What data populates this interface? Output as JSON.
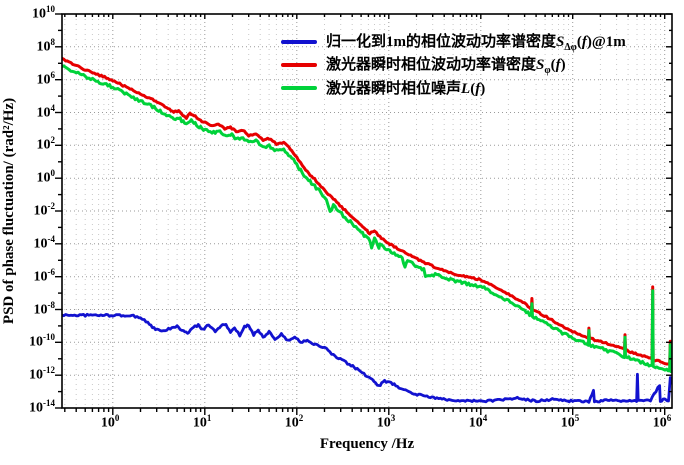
{
  "figure": {
    "background": "#ffffff",
    "axis_color": "#000000",
    "grid_major_color": "#9a9a9a",
    "grid_minor_color": "#c8c8c8"
  },
  "chart_data": {
    "type": "line",
    "title": "",
    "xlabel": "Frequency /Hz",
    "ylabel": "PSD of phase fluctuation/ (rad²/Hz)",
    "xscale": "log",
    "yscale": "log",
    "xlim": [
      0.28,
      1200000
    ],
    "ylim": [
      1e-14,
      10000000000.0
    ],
    "x_tick_exponents": [
      0,
      1,
      2,
      3,
      4,
      5,
      6
    ],
    "y_tick_exponents": [
      10,
      8,
      6,
      4,
      2,
      0,
      -2,
      -4,
      -6,
      -8,
      -10,
      -12,
      -14
    ],
    "grid": "dotted",
    "legend_position": "top-right-inside",
    "legend": [
      {
        "series": 0,
        "color": "#1212cf",
        "label_cjk": "归一化到1m的相位波动功率谱密度",
        "label_math": "*S*_{Δφ}(*f*)@1m"
      },
      {
        "series": 1,
        "color": "#e60000",
        "label_cjk": "激光器瞬时相位波动功率谱密度",
        "label_math": "*S*_{φ}(*f*)"
      },
      {
        "series": 2,
        "color": "#00d23a",
        "label_cjk": "激光器瞬时相位噪声",
        "label_math": "*L*(*f*)"
      }
    ],
    "series": [
      {
        "name": "归一化到1m的相位波动功率谱密度SΔφ(f)@1m",
        "color": "#1212cf",
        "width": 2.8,
        "noise_dec": 0.06,
        "points": [
          [
            0.28,
            4.5e-09
          ],
          [
            0.6,
            4.5e-09
          ],
          [
            1.0,
            4.4e-09
          ],
          [
            1.6,
            4.2e-09
          ],
          [
            2.0,
            3.2e-09
          ],
          [
            2.4,
            1.6e-09
          ],
          [
            2.8,
            7e-10
          ],
          [
            3.4,
            4.5e-10
          ],
          [
            4.2,
            7e-10
          ],
          [
            5.0,
            9e-10
          ],
          [
            5.8,
            5e-10
          ],
          [
            6.5,
            3.5e-10
          ],
          [
            7.5,
            8e-10
          ],
          [
            8.5,
            1.1e-09
          ],
          [
            9.5,
            6e-10
          ],
          [
            11,
            1.2e-09
          ],
          [
            13,
            5e-10
          ],
          [
            15,
            1e-09
          ],
          [
            17,
            1.3e-09
          ],
          [
            19,
            3.5e-10
          ],
          [
            21,
            8e-10
          ],
          [
            24,
            2.5e-10
          ],
          [
            27,
            9e-10
          ],
          [
            30,
            1.1e-09
          ],
          [
            34,
            3e-10
          ],
          [
            38,
            6e-10
          ],
          [
            43,
            2e-10
          ],
          [
            50,
            4.5e-10
          ],
          [
            58,
            1.5e-10
          ],
          [
            68,
            3.2e-10
          ],
          [
            80,
            1.2e-10
          ],
          [
            95,
            2.2e-10
          ],
          [
            110,
            1e-10
          ],
          [
            130,
            1.4e-10
          ],
          [
            160,
            7e-11
          ],
          [
            200,
            5e-11
          ],
          [
            250,
            1.6e-11
          ],
          [
            310,
            8e-12
          ],
          [
            390,
            4e-12
          ],
          [
            470,
            2e-12
          ],
          [
            560,
            1e-12
          ],
          [
            660,
            5e-13
          ],
          [
            780,
            2.2e-13
          ],
          [
            900,
            4.5e-13
          ],
          [
            1100,
            3e-13
          ],
          [
            1400,
            1.4e-13
          ],
          [
            1800,
            8e-14
          ],
          [
            2400,
            5.5e-14
          ],
          [
            3200,
            4e-14
          ],
          [
            4500,
            3.2e-14
          ],
          [
            6500,
            2.8e-14
          ],
          [
            10000,
            2.6e-14
          ],
          [
            16000,
            3e-14
          ],
          [
            25000,
            4e-14
          ],
          [
            40000,
            2.6e-14
          ],
          [
            60000,
            3.4e-14
          ],
          [
            100000,
            2.6e-14
          ],
          [
            150000,
            2.5e-14
          ],
          [
            168000,
            1.1e-13
          ],
          [
            172000,
            2.5e-14
          ],
          [
            250000,
            3e-14
          ],
          [
            350000,
            2.6e-14
          ],
          [
            495000,
            2.6e-14
          ],
          [
            505000,
            1.3e-12
          ],
          [
            515000,
            2.6e-14
          ],
          [
            700000,
            3e-14
          ],
          [
            880000,
            2.5e-13
          ],
          [
            895000,
            2.6e-14
          ],
          [
            1000000,
            3.5e-14
          ],
          [
            1100000,
            2.8e-14
          ],
          [
            1150000,
            7e-13
          ],
          [
            1200000,
            3e-13
          ]
        ]
      },
      {
        "name": "激光器瞬时相位波动功率谱密度Sφ(f)",
        "color": "#e60000",
        "width": 3,
        "noise_dec": 0.05,
        "points": [
          [
            0.28,
            18000000.0
          ],
          [
            0.4,
            7000000.0
          ],
          [
            0.55,
            3200000.0
          ],
          [
            0.75,
            1700000.0
          ],
          [
            1.0,
            900000.0
          ],
          [
            1.4,
            350000.0
          ],
          [
            2.0,
            130000.0
          ],
          [
            2.7,
            60000.0
          ],
          [
            3.4,
            30000.0
          ],
          [
            4.0,
            17000.0
          ],
          [
            4.6,
            11000.0
          ],
          [
            5.2,
            13000.0
          ],
          [
            5.8,
            7000.0
          ],
          [
            6.3,
            4500.0
          ],
          [
            6.9,
            9000.0
          ],
          [
            7.6,
            6500.0
          ],
          [
            8.4,
            4200.0
          ],
          [
            9.3,
            3000.0
          ],
          [
            10.5,
            2200.0
          ],
          [
            12,
            1500.0
          ],
          [
            14,
            2000.0
          ],
          [
            16.5,
            1000.0
          ],
          [
            19,
            1300.0
          ],
          [
            22,
            650.0
          ],
          [
            26,
            800.0
          ],
          [
            30,
            400.0
          ],
          [
            36,
            480.0
          ],
          [
            43,
            220.0
          ],
          [
            50,
            260.0
          ],
          [
            60,
            120.0
          ],
          [
            72,
            140.0
          ],
          [
            85,
            60
          ],
          [
            100,
            18
          ],
          [
            110,
            8
          ],
          [
            120,
            4
          ],
          [
            145,
            1.3
          ],
          [
            175,
            0.45
          ],
          [
            210,
            0.14
          ],
          [
            260,
            0.045
          ],
          [
            320,
            0.014
          ],
          [
            400,
            0.0045
          ],
          [
            480,
            0.0016
          ],
          [
            560,
            0.00075
          ],
          [
            620,
            0.00042
          ],
          [
            700,
            0.00062
          ],
          [
            800,
            0.00026
          ],
          [
            950,
            0.00013
          ],
          [
            1100,
            7.5e-05
          ],
          [
            1400,
            3.6e-05
          ],
          [
            1800,
            1.7e-05
          ],
          [
            2400,
            7.5e-06
          ],
          [
            3200,
            3.8e-06
          ],
          [
            4500,
            1.9e-06
          ],
          [
            6000,
            1.2e-06
          ],
          [
            8000,
            8.5e-07
          ],
          [
            10000,
            6.5e-07
          ],
          [
            14000,
            2.6e-07
          ],
          [
            20000,
            8.5e-08
          ],
          [
            30000,
            2.4e-08
          ],
          [
            35500,
            1.1e-08
          ],
          [
            36000,
            4.5e-08
          ],
          [
            36500,
            1e-08
          ],
          [
            45000,
            5.5e-09
          ],
          [
            65000,
            1.7e-09
          ],
          [
            100000,
            4.5e-10
          ],
          [
            148000,
            1.9e-10
          ],
          [
            150000,
            8e-10
          ],
          [
            152000,
            1.8e-10
          ],
          [
            220000,
            9.5e-11
          ],
          [
            300000,
            5.5e-11
          ],
          [
            365000,
            3.6e-11
          ],
          [
            370000,
            3e-10
          ],
          [
            375000,
            3.4e-11
          ],
          [
            500000,
            1.9e-11
          ],
          [
            600000,
            1.4e-11
          ],
          [
            730000,
            9.5e-12
          ],
          [
            740000,
            2.5e-07
          ],
          [
            750000,
            9e-12
          ],
          [
            900000,
            6.5e-12
          ],
          [
            1050000,
            5e-12
          ],
          [
            1130000,
            4.2e-12
          ],
          [
            1150000,
            1.2e-10
          ],
          [
            1170000,
            4.2e-12
          ],
          [
            1200000,
            5e-12
          ]
        ]
      },
      {
        "name": "激光器瞬时相位噪声L(f)",
        "color": "#00d23a",
        "width": 3,
        "noise_dec": 0.09,
        "points": [
          [
            0.28,
            7000000.0
          ],
          [
            0.4,
            2700000.0
          ],
          [
            0.55,
            1200000.0
          ],
          [
            0.75,
            640000.0
          ],
          [
            1.0,
            340000.0
          ],
          [
            1.4,
            130000.0
          ],
          [
            2.0,
            49000.0
          ],
          [
            2.7,
            23000.0
          ],
          [
            3.4,
            11000.0
          ],
          [
            4.0,
            6400.0
          ],
          [
            4.6,
            4100.0
          ],
          [
            5.2,
            4900.0
          ],
          [
            5.8,
            2600.0
          ],
          [
            6.3,
            1700.0
          ],
          [
            6.9,
            3400.0
          ],
          [
            7.6,
            2400.0
          ],
          [
            8.4,
            1600.0
          ],
          [
            9.3,
            1100.0
          ],
          [
            10.5,
            820.0
          ],
          [
            12,
            560.0
          ],
          [
            14,
            750.0
          ],
          [
            16.5,
            380.0
          ],
          [
            19,
            490.0
          ],
          [
            22,
            240.0
          ],
          [
            26,
            300.0
          ],
          [
            30,
            150.0
          ],
          [
            36,
            180.0
          ],
          [
            43,
            82
          ],
          [
            50,
            97
          ],
          [
            60,
            45
          ],
          [
            72,
            52
          ],
          [
            85,
            22
          ],
          [
            100,
            7
          ],
          [
            110,
            3
          ],
          [
            120,
            1.5
          ],
          [
            145,
            0.5
          ],
          [
            175,
            0.17
          ],
          [
            210,
            0.052
          ],
          [
            230,
            0.009
          ],
          [
            250,
            0.02
          ],
          [
            260,
            0.017
          ],
          [
            320,
            0.0052
          ],
          [
            400,
            0.0017
          ],
          [
            480,
            0.0006
          ],
          [
            560,
            0.00028
          ],
          [
            620,
            0.00016
          ],
          [
            650,
            5e-05
          ],
          [
            700,
            0.00023
          ],
          [
            780,
            4.5e-05
          ],
          [
            800,
            0.0001
          ],
          [
            950,
            4.8e-05
          ],
          [
            1100,
            2.8e-05
          ],
          [
            1400,
            1.3e-05
          ],
          [
            1500,
            3.5e-06
          ],
          [
            1600,
            1.1e-05
          ],
          [
            1800,
            6.3e-06
          ],
          [
            2400,
            2.8e-06
          ],
          [
            2500,
            9e-07
          ],
          [
            3200,
            1.4e-06
          ],
          [
            4500,
            7e-07
          ],
          [
            6000,
            4.5e-07
          ],
          [
            8000,
            3.2e-07
          ],
          [
            10000,
            2.5e-07
          ],
          [
            14000,
            1e-07
          ],
          [
            20000,
            3.2e-08
          ],
          [
            30000,
            9e-09
          ],
          [
            35500,
            4.2e-09
          ],
          [
            36000,
            2e-08
          ],
          [
            36500,
            3.8e-09
          ],
          [
            45000,
            2.1e-09
          ],
          [
            65000,
            6.5e-10
          ],
          [
            100000,
            1.7e-10
          ],
          [
            148000,
            7.5e-11
          ],
          [
            150000,
            4.5e-10
          ],
          [
            152000,
            7e-11
          ],
          [
            220000,
            3.6e-11
          ],
          [
            300000,
            2.1e-11
          ],
          [
            365000,
            1.4e-11
          ],
          [
            370000,
            1.8e-10
          ],
          [
            375000,
            1.3e-11
          ],
          [
            500000,
            7.5e-12
          ],
          [
            600000,
            5.5e-12
          ],
          [
            730000,
            3.8e-12
          ],
          [
            740000,
            1.5e-07
          ],
          [
            750000,
            3.6e-12
          ],
          [
            900000,
            2.6e-12
          ],
          [
            1050000,
            2e-12
          ],
          [
            1130000,
            1.7e-12
          ],
          [
            1150000,
            8e-11
          ],
          [
            1170000,
            1.7e-12
          ],
          [
            1200000,
            2.1e-12
          ]
        ]
      }
    ]
  }
}
